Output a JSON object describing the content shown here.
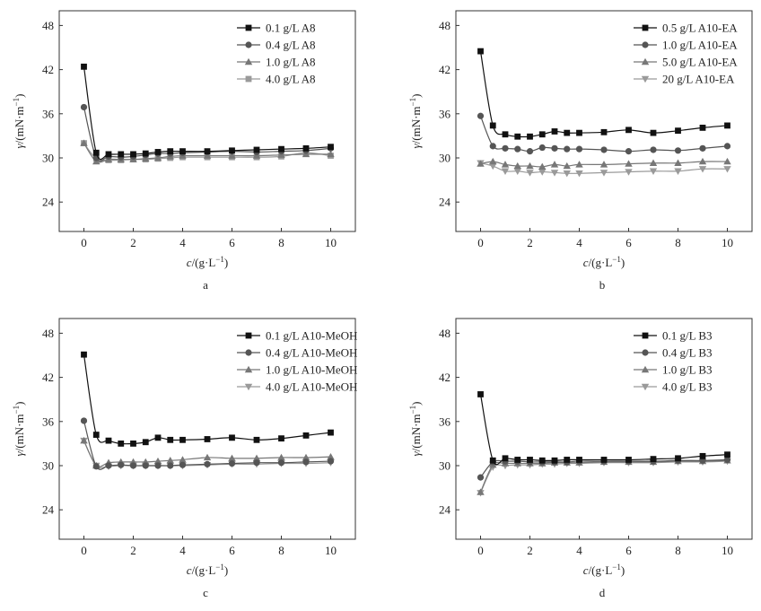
{
  "chart_data": [
    {
      "type": "line",
      "panel_label": "a",
      "xlabel_italic": "c",
      "xlabel_unit": "/(g·L",
      "xlabel_sup": "−1",
      "xlabel_close": ")",
      "ylabel_italic": "γ",
      "ylabel_unit": "/(mN·m",
      "ylabel_sup": "−1",
      "ylabel_close": ")",
      "xlim": [
        -1,
        11
      ],
      "ylim": [
        20,
        50
      ],
      "xticks": [
        0,
        2,
        4,
        6,
        8,
        10
      ],
      "yticks": [
        24,
        30,
        36,
        42,
        48
      ],
      "grid": false,
      "legend": "top-right",
      "series": [
        {
          "name": "0.1 g/L A8",
          "marker": "square",
          "color": "#111111",
          "x": [
            0,
            0.5,
            1,
            1.5,
            2,
            2.5,
            3,
            3.5,
            4,
            5,
            6,
            7,
            8,
            9,
            10
          ],
          "y": [
            42.4,
            30.7,
            30.5,
            30.5,
            30.5,
            30.6,
            30.8,
            30.9,
            30.9,
            30.9,
            31.0,
            31.1,
            31.2,
            31.3,
            31.5
          ]
        },
        {
          "name": "0.4 g/L A8",
          "marker": "circle",
          "color": "#555555",
          "x": [
            0,
            0.5,
            1,
            1.5,
            2,
            2.5,
            3,
            3.5,
            4,
            5,
            6,
            7,
            8,
            9,
            10
          ],
          "y": [
            36.9,
            30.0,
            30.2,
            30.1,
            30.2,
            30.4,
            30.6,
            30.6,
            30.7,
            30.8,
            30.9,
            30.8,
            30.9,
            31.0,
            31.3
          ]
        },
        {
          "name": "1.0 g/L A8",
          "marker": "triangle-up",
          "color": "#777777",
          "x": [
            0,
            0.5,
            1,
            1.5,
            2,
            2.5,
            3,
            3.5,
            4,
            5,
            6,
            7,
            8,
            9,
            10
          ],
          "y": [
            32.0,
            29.5,
            29.8,
            29.8,
            29.8,
            29.9,
            30.0,
            30.2,
            30.3,
            30.3,
            30.3,
            30.3,
            30.4,
            30.5,
            30.5
          ]
        },
        {
          "name": "4.0 g/L A8",
          "marker": "square",
          "color": "#9a9a9a",
          "x": [
            0,
            0.5,
            1,
            1.5,
            2,
            2.5,
            3,
            3.5,
            4,
            5,
            6,
            7,
            8,
            9,
            10
          ],
          "y": [
            32.0,
            29.9,
            29.7,
            29.7,
            29.8,
            29.8,
            29.9,
            30.0,
            30.1,
            30.1,
            30.1,
            30.1,
            30.2,
            30.7,
            30.3
          ]
        }
      ]
    },
    {
      "type": "line",
      "panel_label": "b",
      "xlabel_italic": "c",
      "xlabel_unit": "/(g·L",
      "xlabel_sup": "−1",
      "xlabel_close": ")",
      "ylabel_italic": "γ",
      "ylabel_unit": "/(mN·m",
      "ylabel_sup": "−1",
      "ylabel_close": ")",
      "xlim": [
        -1,
        11
      ],
      "ylim": [
        20,
        50
      ],
      "xticks": [
        0,
        2,
        4,
        6,
        8,
        10
      ],
      "yticks": [
        24,
        30,
        36,
        42,
        48
      ],
      "grid": false,
      "legend": "top-right",
      "series": [
        {
          "name": "0.5 g/L A10-EA",
          "marker": "square",
          "color": "#111111",
          "x": [
            0,
            0.5,
            1,
            1.5,
            2,
            2.5,
            3,
            3.5,
            4,
            5,
            6,
            7,
            8,
            9,
            10
          ],
          "y": [
            44.5,
            34.4,
            33.2,
            32.9,
            32.9,
            33.2,
            33.6,
            33.4,
            33.4,
            33.5,
            33.8,
            33.4,
            33.7,
            34.1,
            34.4
          ]
        },
        {
          "name": "1.0 g/L A10-EA",
          "marker": "circle",
          "color": "#555555",
          "x": [
            0,
            0.5,
            1,
            1.5,
            2,
            2.5,
            3,
            3.5,
            4,
            5,
            6,
            7,
            8,
            9,
            10
          ],
          "y": [
            35.7,
            31.6,
            31.3,
            31.2,
            30.9,
            31.4,
            31.3,
            31.2,
            31.2,
            31.1,
            30.9,
            31.1,
            31.0,
            31.3,
            31.6
          ]
        },
        {
          "name": "5.0 g/L A10-EA",
          "marker": "triangle-up",
          "color": "#777777",
          "x": [
            0,
            0.5,
            1,
            1.5,
            2,
            2.5,
            3,
            3.5,
            4,
            5,
            6,
            7,
            8,
            9,
            10
          ],
          "y": [
            29.2,
            29.5,
            29.1,
            28.9,
            28.9,
            28.8,
            29.1,
            28.9,
            29.1,
            29.1,
            29.2,
            29.3,
            29.3,
            29.5,
            29.5
          ]
        },
        {
          "name": "20  g/L A10-EA",
          "marker": "triangle-down",
          "color": "#9a9a9a",
          "x": [
            0,
            0.5,
            1,
            1.5,
            2,
            2.5,
            3,
            3.5,
            4,
            5,
            6,
            7,
            8,
            9,
            10
          ],
          "y": [
            29.3,
            28.9,
            28.2,
            28.2,
            28.0,
            28.1,
            28.0,
            27.9,
            27.9,
            28.0,
            28.1,
            28.2,
            28.2,
            28.5,
            28.5
          ]
        }
      ]
    },
    {
      "type": "line",
      "panel_label": "c",
      "xlabel_italic": "c",
      "xlabel_unit": "/(g·L",
      "xlabel_sup": "−1",
      "xlabel_close": ")",
      "ylabel_italic": "γ",
      "ylabel_unit": "/(mN·m",
      "ylabel_sup": "−1",
      "ylabel_close": ")",
      "xlim": [
        -1,
        11
      ],
      "ylim": [
        20,
        50
      ],
      "xticks": [
        0,
        2,
        4,
        6,
        8,
        10
      ],
      "yticks": [
        24,
        30,
        36,
        42,
        48
      ],
      "grid": false,
      "legend": "top-right",
      "series": [
        {
          "name": "0.1 g/L A10-MeOH",
          "marker": "square",
          "color": "#111111",
          "x": [
            0,
            0.5,
            1,
            1.5,
            2,
            2.5,
            3,
            3.5,
            4,
            5,
            6,
            7,
            8,
            9,
            10
          ],
          "y": [
            45.1,
            34.2,
            33.4,
            33.0,
            33.0,
            33.2,
            33.8,
            33.5,
            33.5,
            33.6,
            33.8,
            33.5,
            33.7,
            34.1,
            34.5
          ]
        },
        {
          "name": "0.4 g/L A10-MeOH",
          "marker": "circle",
          "color": "#555555",
          "x": [
            0,
            0.5,
            1,
            1.5,
            2,
            2.5,
            3,
            3.5,
            4,
            5,
            6,
            7,
            8,
            9,
            10
          ],
          "y": [
            36.1,
            29.9,
            30.0,
            30.1,
            30.0,
            30.0,
            30.0,
            30.0,
            30.1,
            30.2,
            30.3,
            30.4,
            30.4,
            30.5,
            30.6
          ]
        },
        {
          "name": "1.0 g/L A10-MeOH",
          "marker": "triangle-up",
          "color": "#777777",
          "x": [
            0,
            0.5,
            1,
            1.5,
            2,
            2.5,
            3,
            3.5,
            4,
            5,
            6,
            7,
            8,
            9,
            10
          ],
          "y": [
            33.4,
            30.0,
            30.4,
            30.5,
            30.5,
            30.5,
            30.6,
            30.7,
            30.8,
            31.1,
            31.0,
            31.0,
            31.1,
            31.1,
            31.2
          ]
        },
        {
          "name": "4.0 g/L A10-MeOH",
          "marker": "triangle-down",
          "color": "#9a9a9a",
          "x": [
            0,
            0.5,
            1,
            1.5,
            2,
            2.5,
            3,
            3.5,
            4,
            5,
            6,
            7,
            8,
            9,
            10
          ],
          "y": [
            33.4,
            30.0,
            29.9,
            30.0,
            30.0,
            30.0,
            30.0,
            30.0,
            30.0,
            30.1,
            30.2,
            30.2,
            30.3,
            30.3,
            30.4
          ]
        }
      ]
    },
    {
      "type": "line",
      "panel_label": "d",
      "xlabel_italic": "c",
      "xlabel_unit": "/(g·L",
      "xlabel_sup": "−1",
      "xlabel_close": ")",
      "ylabel_italic": "γ",
      "ylabel_unit": "/(mN·m",
      "ylabel_sup": "−1",
      "ylabel_close": ")",
      "xlim": [
        -1,
        11
      ],
      "ylim": [
        20,
        50
      ],
      "xticks": [
        0,
        2,
        4,
        6,
        8,
        10
      ],
      "yticks": [
        24,
        30,
        36,
        42,
        48
      ],
      "grid": false,
      "legend": "top-right",
      "series": [
        {
          "name": "0.1 g/L B3",
          "marker": "square",
          "color": "#111111",
          "x": [
            0,
            0.5,
            1,
            1.5,
            2,
            2.5,
            3,
            3.5,
            4,
            5,
            6,
            7,
            8,
            9,
            10
          ],
          "y": [
            39.7,
            30.7,
            31.0,
            30.8,
            30.8,
            30.7,
            30.7,
            30.8,
            30.8,
            30.8,
            30.8,
            30.9,
            31.0,
            31.3,
            31.5
          ]
        },
        {
          "name": "0.4 g/L B3",
          "marker": "circle",
          "color": "#555555",
          "x": [
            0,
            0.5,
            1,
            1.5,
            2,
            2.5,
            3,
            3.5,
            4,
            5,
            6,
            7,
            8,
            9,
            10
          ],
          "y": [
            28.4,
            30.5,
            30.6,
            30.6,
            30.5,
            30.5,
            30.5,
            30.5,
            30.6,
            30.6,
            30.6,
            30.6,
            30.7,
            30.7,
            30.8
          ]
        },
        {
          "name": "1.0 g/L B3",
          "marker": "triangle-up",
          "color": "#777777",
          "x": [
            0,
            0.5,
            1,
            1.5,
            2,
            2.5,
            3,
            3.5,
            4,
            5,
            6,
            7,
            8,
            9,
            10
          ],
          "y": [
            26.4,
            30.1,
            30.3,
            30.3,
            30.3,
            30.3,
            30.4,
            30.4,
            30.4,
            30.5,
            30.5,
            30.5,
            30.6,
            30.6,
            30.7
          ]
        },
        {
          "name": "4.0 g/L B3",
          "marker": "triangle-down",
          "color": "#9a9a9a",
          "x": [
            0,
            0.5,
            1,
            1.5,
            2,
            2.5,
            3,
            3.5,
            4,
            5,
            6,
            7,
            8,
            9,
            10
          ],
          "y": [
            26.3,
            29.8,
            30.0,
            30.1,
            30.1,
            30.2,
            30.2,
            30.3,
            30.3,
            30.4,
            30.4,
            30.4,
            30.5,
            30.5,
            30.6
          ]
        }
      ]
    }
  ]
}
